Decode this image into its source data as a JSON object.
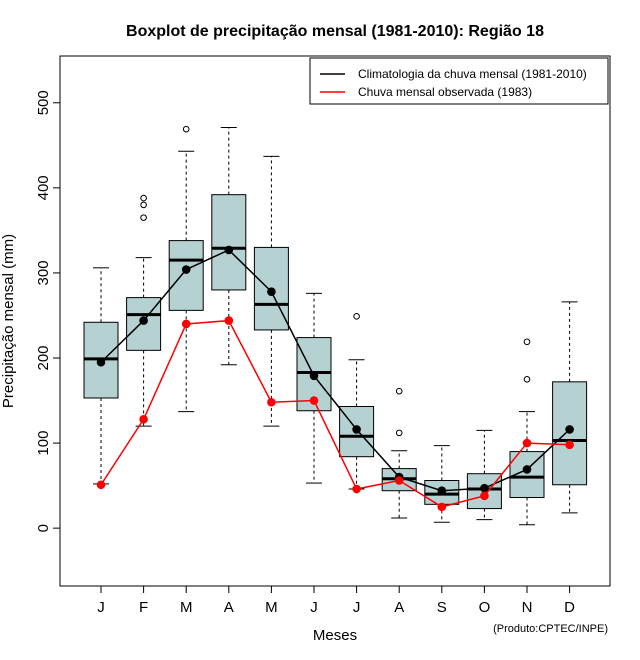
{
  "chart_data": {
    "type": "boxplot",
    "title": "Boxplot de precipitação mensal (1981-2010): Região 18",
    "xlabel": "Meses",
    "ylabel": "Precipitação mensal (mm)",
    "ylim": [
      -68,
      555
    ],
    "yticks": [
      0,
      100,
      200,
      300,
      400,
      500
    ],
    "categories": [
      "J",
      "F",
      "M",
      "A",
      "M",
      "J",
      "J",
      "A",
      "S",
      "O",
      "N",
      "D"
    ],
    "boxes": [
      {
        "wlo": 52,
        "q1": 153,
        "med": 199,
        "q3": 242,
        "whi": 306,
        "outliers": []
      },
      {
        "wlo": 120,
        "q1": 209,
        "med": 251,
        "q3": 271,
        "whi": 318,
        "outliers": [
          365,
          380,
          388
        ]
      },
      {
        "wlo": 137,
        "q1": 256,
        "med": 315,
        "q3": 338,
        "whi": 443,
        "outliers": [
          469
        ]
      },
      {
        "wlo": 192,
        "q1": 280,
        "med": 329,
        "q3": 392,
        "whi": 471,
        "outliers": []
      },
      {
        "wlo": 120,
        "q1": 233,
        "med": 263,
        "q3": 330,
        "whi": 437,
        "outliers": []
      },
      {
        "wlo": 53,
        "q1": 138,
        "med": 183,
        "q3": 224,
        "whi": 276,
        "outliers": []
      },
      {
        "wlo": 46,
        "q1": 84,
        "med": 108,
        "q3": 143,
        "whi": 198,
        "outliers": [
          249
        ]
      },
      {
        "wlo": 12,
        "q1": 44,
        "med": 58,
        "q3": 70,
        "whi": 91,
        "outliers": [
          112,
          161
        ]
      },
      {
        "wlo": 7,
        "q1": 28,
        "med": 40,
        "q3": 56,
        "whi": 97,
        "outliers": []
      },
      {
        "wlo": 10,
        "q1": 23,
        "med": 46,
        "q3": 64,
        "whi": 115,
        "outliers": []
      },
      {
        "wlo": 4,
        "q1": 36,
        "med": 60,
        "q3": 90,
        "whi": 137,
        "outliers": [
          175,
          219
        ]
      },
      {
        "wlo": 18,
        "q1": 51,
        "med": 103,
        "q3": 172,
        "whi": 266,
        "outliers": []
      }
    ],
    "series": [
      {
        "name": "Climatologia da chuva mensal (1981-2010)",
        "color": "#000000",
        "values": [
          195,
          244,
          304,
          327,
          278,
          179,
          116,
          60,
          44,
          47,
          69,
          116
        ]
      },
      {
        "name": "Chuva mensal observada (1983)",
        "color": "#ff0000",
        "values": [
          51,
          128,
          240,
          244,
          148,
          150,
          46,
          56,
          25,
          38,
          100,
          98
        ]
      }
    ],
    "box_color": "#b5d1d1",
    "legend_position": "top-right",
    "credit": "(Produto:CPTEC/INPE)"
  }
}
